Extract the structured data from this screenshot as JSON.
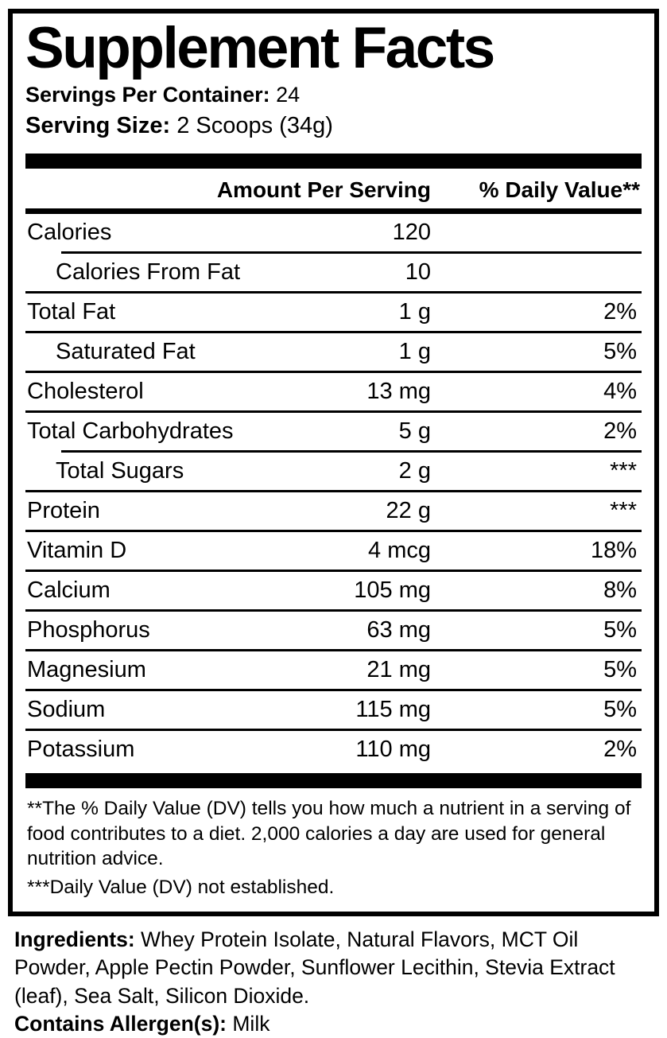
{
  "title": "Supplement Facts",
  "servings_per_container": {
    "label": "Servings Per Container:",
    "value": "24"
  },
  "serving_size": {
    "label": "Serving Size:",
    "value": "2 Scoops (34g)"
  },
  "table": {
    "amount_header": "Amount Per Serving",
    "dv_header": "% Daily Value**",
    "rows": [
      {
        "name": "Calories",
        "amount": "120",
        "dv": "",
        "indent": false,
        "sep": "none"
      },
      {
        "name": "Calories From Fat",
        "amount": "10",
        "dv": "",
        "indent": true,
        "sep": "indent"
      },
      {
        "name": "Total Fat",
        "amount": "1 g",
        "dv": "2%",
        "indent": false,
        "sep": "full"
      },
      {
        "name": "Saturated Fat",
        "amount": "1 g",
        "dv": "5%",
        "indent": true,
        "sep": "full"
      },
      {
        "name": "Cholesterol",
        "amount": "13 mg",
        "dv": "4%",
        "indent": false,
        "sep": "full"
      },
      {
        "name": "Total Carbohydrates",
        "amount": "5 g",
        "dv": "2%",
        "indent": false,
        "sep": "full"
      },
      {
        "name": "Total Sugars",
        "amount": "2 g",
        "dv": "***",
        "indent": true,
        "sep": "indent"
      },
      {
        "name": "Protein",
        "amount": "22 g",
        "dv": "***",
        "indent": false,
        "sep": "full"
      },
      {
        "name": "Vitamin D",
        "amount": "4 mcg",
        "dv": "18%",
        "indent": false,
        "sep": "full"
      },
      {
        "name": "Calcium",
        "amount": "105 mg",
        "dv": "8%",
        "indent": false,
        "sep": "full"
      },
      {
        "name": "Phosphorus",
        "amount": "63 mg",
        "dv": "5%",
        "indent": false,
        "sep": "full"
      },
      {
        "name": "Magnesium",
        "amount": "21 mg",
        "dv": "5%",
        "indent": false,
        "sep": "full"
      },
      {
        "name": "Sodium",
        "amount": "115 mg",
        "dv": "5%",
        "indent": false,
        "sep": "full"
      },
      {
        "name": "Potassium",
        "amount": "110 mg",
        "dv": "2%",
        "indent": false,
        "sep": "full"
      }
    ]
  },
  "footnotes": {
    "daily_value_note": "**The % Daily Value (DV) tells you how much a nutrient in a serving of food contributes to a diet. 2,000 calories a day are used for general nutrition advice.",
    "not_established_note": "***Daily Value (DV) not established."
  },
  "ingredients": {
    "label": "Ingredients:",
    "value": "Whey Protein Isolate, Natural Flavors, MCT Oil Powder, Apple Pectin Powder, Sunflower Lecithin, Stevia Extract (leaf), Sea Salt, Silicon Dioxide."
  },
  "allergens": {
    "label": "Contains Allergen(s):",
    "value": "Milk"
  },
  "colors": {
    "text": "#000000",
    "background": "#ffffff",
    "rule": "#000000"
  }
}
